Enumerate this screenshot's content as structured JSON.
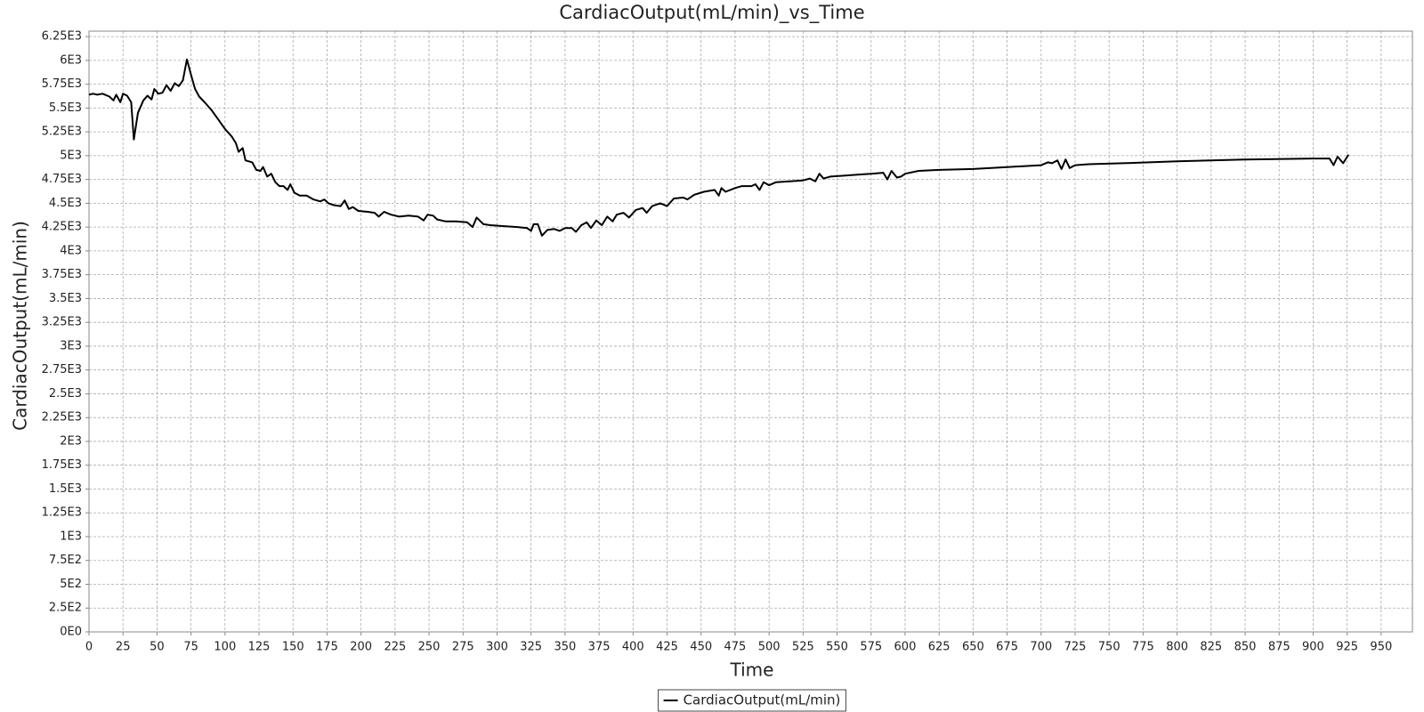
{
  "chart_data": {
    "type": "line",
    "title": "CardiacOutput(mL/min)_vs_Time",
    "x_label": "Time",
    "y_label": "CardiacOutput(mL/min)",
    "x": [
      0,
      3,
      6,
      10,
      15,
      18,
      20,
      23,
      25,
      28,
      31,
      33,
      36,
      40,
      43,
      46,
      48,
      51,
      54,
      57,
      60,
      63,
      66,
      69,
      72,
      75,
      78,
      81,
      85,
      90,
      95,
      100,
      105,
      108,
      110,
      113,
      115,
      120,
      123,
      126,
      128,
      131,
      134,
      137,
      140,
      143,
      146,
      148,
      151,
      155,
      160,
      165,
      170,
      173,
      176,
      180,
      185,
      188,
      191,
      194,
      198,
      205,
      210,
      213,
      217,
      222,
      228,
      235,
      242,
      246,
      249,
      253,
      256,
      262,
      270,
      278,
      282,
      285,
      290,
      295,
      305,
      315,
      322,
      325,
      327,
      330,
      333,
      337,
      342,
      346,
      350,
      355,
      358,
      362,
      366,
      369,
      373,
      377,
      381,
      385,
      388,
      393,
      397,
      402,
      407,
      410,
      414,
      420,
      425,
      430,
      437,
      440,
      445,
      452,
      460,
      463,
      465,
      468,
      475,
      480,
      487,
      490,
      493,
      496,
      500,
      505,
      515,
      525,
      530,
      534,
      537,
      540,
      545,
      555,
      565,
      575,
      584,
      587,
      590,
      594,
      597,
      600,
      610,
      625,
      650,
      675,
      700,
      705,
      708,
      712,
      715,
      718,
      721,
      725,
      735,
      760,
      800,
      850,
      900,
      912,
      915,
      918,
      922,
      926
    ],
    "series": [
      {
        "name": "CardiacOutput(mL/min)",
        "color": "#000000",
        "values": [
          5640,
          5650,
          5640,
          5650,
          5620,
          5580,
          5640,
          5560,
          5650,
          5630,
          5560,
          5170,
          5450,
          5580,
          5630,
          5590,
          5700,
          5650,
          5660,
          5740,
          5680,
          5760,
          5730,
          5790,
          6010,
          5850,
          5700,
          5620,
          5560,
          5480,
          5380,
          5280,
          5200,
          5130,
          5040,
          5080,
          4950,
          4930,
          4850,
          4840,
          4880,
          4780,
          4810,
          4720,
          4680,
          4680,
          4640,
          4700,
          4610,
          4580,
          4580,
          4540,
          4520,
          4540,
          4500,
          4480,
          4470,
          4530,
          4440,
          4460,
          4420,
          4410,
          4400,
          4360,
          4410,
          4380,
          4360,
          4370,
          4360,
          4320,
          4380,
          4370,
          4330,
          4310,
          4310,
          4300,
          4250,
          4350,
          4280,
          4270,
          4260,
          4250,
          4240,
          4210,
          4280,
          4280,
          4160,
          4220,
          4230,
          4210,
          4240,
          4240,
          4200,
          4270,
          4300,
          4240,
          4320,
          4270,
          4360,
          4310,
          4380,
          4400,
          4350,
          4430,
          4450,
          4400,
          4470,
          4500,
          4470,
          4550,
          4560,
          4540,
          4590,
          4620,
          4640,
          4580,
          4660,
          4620,
          4660,
          4680,
          4680,
          4700,
          4640,
          4720,
          4690,
          4720,
          4730,
          4740,
          4760,
          4730,
          4810,
          4760,
          4780,
          4790,
          4800,
          4810,
          4820,
          4750,
          4840,
          4770,
          4780,
          4810,
          4840,
          4850,
          4860,
          4880,
          4900,
          4930,
          4920,
          4950,
          4860,
          4960,
          4870,
          4900,
          4910,
          4920,
          4940,
          4960,
          4970,
          4970,
          4900,
          4990,
          4920,
          5010
        ]
      }
    ],
    "xlim": [
      0,
      973
    ],
    "ylim": [
      0,
      6307
    ],
    "xticks": [
      0,
      25,
      50,
      75,
      100,
      125,
      150,
      175,
      200,
      225,
      250,
      275,
      300,
      325,
      350,
      375,
      400,
      425,
      450,
      475,
      500,
      525,
      550,
      575,
      600,
      625,
      650,
      675,
      700,
      725,
      750,
      775,
      800,
      825,
      850,
      875,
      900,
      925,
      950
    ],
    "yticks": [
      {
        "value": 0,
        "label": "0E0"
      },
      {
        "value": 250,
        "label": "2.5E2"
      },
      {
        "value": 500,
        "label": "5E2"
      },
      {
        "value": 750,
        "label": "7.5E2"
      },
      {
        "value": 1000,
        "label": "1E3"
      },
      {
        "value": 1250,
        "label": "1.25E3"
      },
      {
        "value": 1500,
        "label": "1.5E3"
      },
      {
        "value": 1750,
        "label": "1.75E3"
      },
      {
        "value": 2000,
        "label": "2E3"
      },
      {
        "value": 2250,
        "label": "2.25E3"
      },
      {
        "value": 2500,
        "label": "2.5E3"
      },
      {
        "value": 2750,
        "label": "2.75E3"
      },
      {
        "value": 3000,
        "label": "3E3"
      },
      {
        "value": 3250,
        "label": "3.25E3"
      },
      {
        "value": 3500,
        "label": "3.5E3"
      },
      {
        "value": 3750,
        "label": "3.75E3"
      },
      {
        "value": 4000,
        "label": "4E3"
      },
      {
        "value": 4250,
        "label": "4.25E3"
      },
      {
        "value": 4500,
        "label": "4.5E3"
      },
      {
        "value": 4750,
        "label": "4.75E3"
      },
      {
        "value": 5000,
        "label": "5E3"
      },
      {
        "value": 5250,
        "label": "5.25E3"
      },
      {
        "value": 5500,
        "label": "5.5E3"
      },
      {
        "value": 5750,
        "label": "5.75E3"
      },
      {
        "value": 6000,
        "label": "6E3"
      },
      {
        "value": 6250,
        "label": "6.25E3"
      }
    ],
    "grid": true,
    "legend": "bottom"
  }
}
